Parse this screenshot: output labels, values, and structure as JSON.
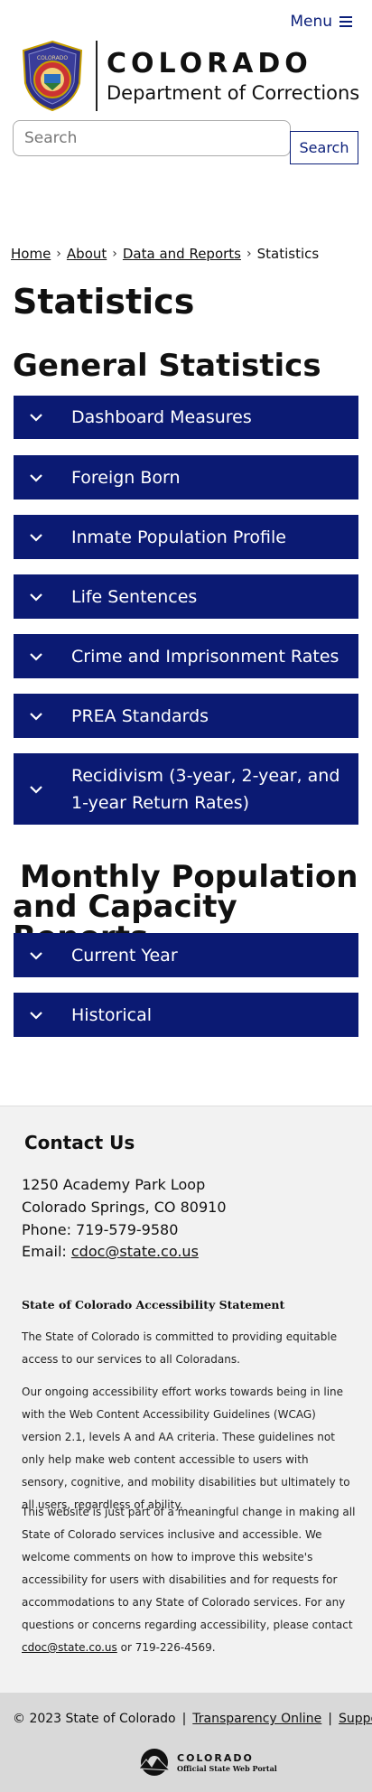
{
  "header": {
    "menu_label": "Menu",
    "brand_top": "COLORADO",
    "brand_bottom": "Department of Corrections",
    "seal_text": "COLORADO"
  },
  "search": {
    "placeholder": "Search",
    "button_label": "Search"
  },
  "breadcrumb": {
    "items": [
      "Home",
      "About",
      "Data and Reports"
    ],
    "current": "Statistics",
    "separator": "›"
  },
  "page_title": "Statistics",
  "sections": [
    {
      "title": "General Statistics",
      "items": [
        "Dashboard Measures",
        "Foreign Born",
        "Inmate Population Profile",
        "Life Sentences",
        "Crime and Imprisonment Rates",
        "PREA Standards",
        "Recidivism (3-year, 2-year, and 1-year Return Rates)"
      ]
    },
    {
      "title_line1": "Monthly Population",
      "title_line2": "and Capacity Reports",
      "items": [
        "Current Year",
        "Historical"
      ]
    }
  ],
  "contact": {
    "title": "Contact Us",
    "address1": "1250 Academy Park Loop",
    "address2": "Colorado Springs, CO 80910",
    "phone": "Phone: 719-579-9580",
    "email_prefix": "Email:",
    "email": "cdoc@state.co.us"
  },
  "accessibility": {
    "title": "State of Colorado Accessibility Statement",
    "p1": "The State of Colorado is committed to providing equitable access to our services to all Coloradans.",
    "p2": "Our ongoing accessibility effort works towards being in line with the Web Content Accessibility Guidelines (WCAG) version 2.1, levels A and AA criteria. These guidelines not only help make web content accessible to users with sensory, cognitive, and mobility disabilities but ultimately to all users, regardless of ability.",
    "p3_start": "This website is just part of a meaningful change in making all State of Colorado services inclusive and accessible. We welcome comments on how to improve this website's accessibility for users with disabilities and for requests for accommodations to any State of Colorado services. For any questions or concerns regarding accessibility, please contact",
    "p3_email": "cdoc@state.co.us",
    "p3_end": "or 719-226-4569."
  },
  "footer": {
    "copyright": "© 2023 State of Colorado",
    "separator": "|",
    "link1": "Transparency Online",
    "link2": "Support",
    "portal_top": "COLORADO",
    "portal_bottom": "Official State Web Portal"
  },
  "colors": {
    "accent": "#0b1a73",
    "footer_bg": "#f2f2f2",
    "bottombar_bg": "#d9d9d9"
  },
  "icons": [
    "menu-icon",
    "chevron-down-icon",
    "colorado-seal",
    "colorado-portal-logo"
  ]
}
